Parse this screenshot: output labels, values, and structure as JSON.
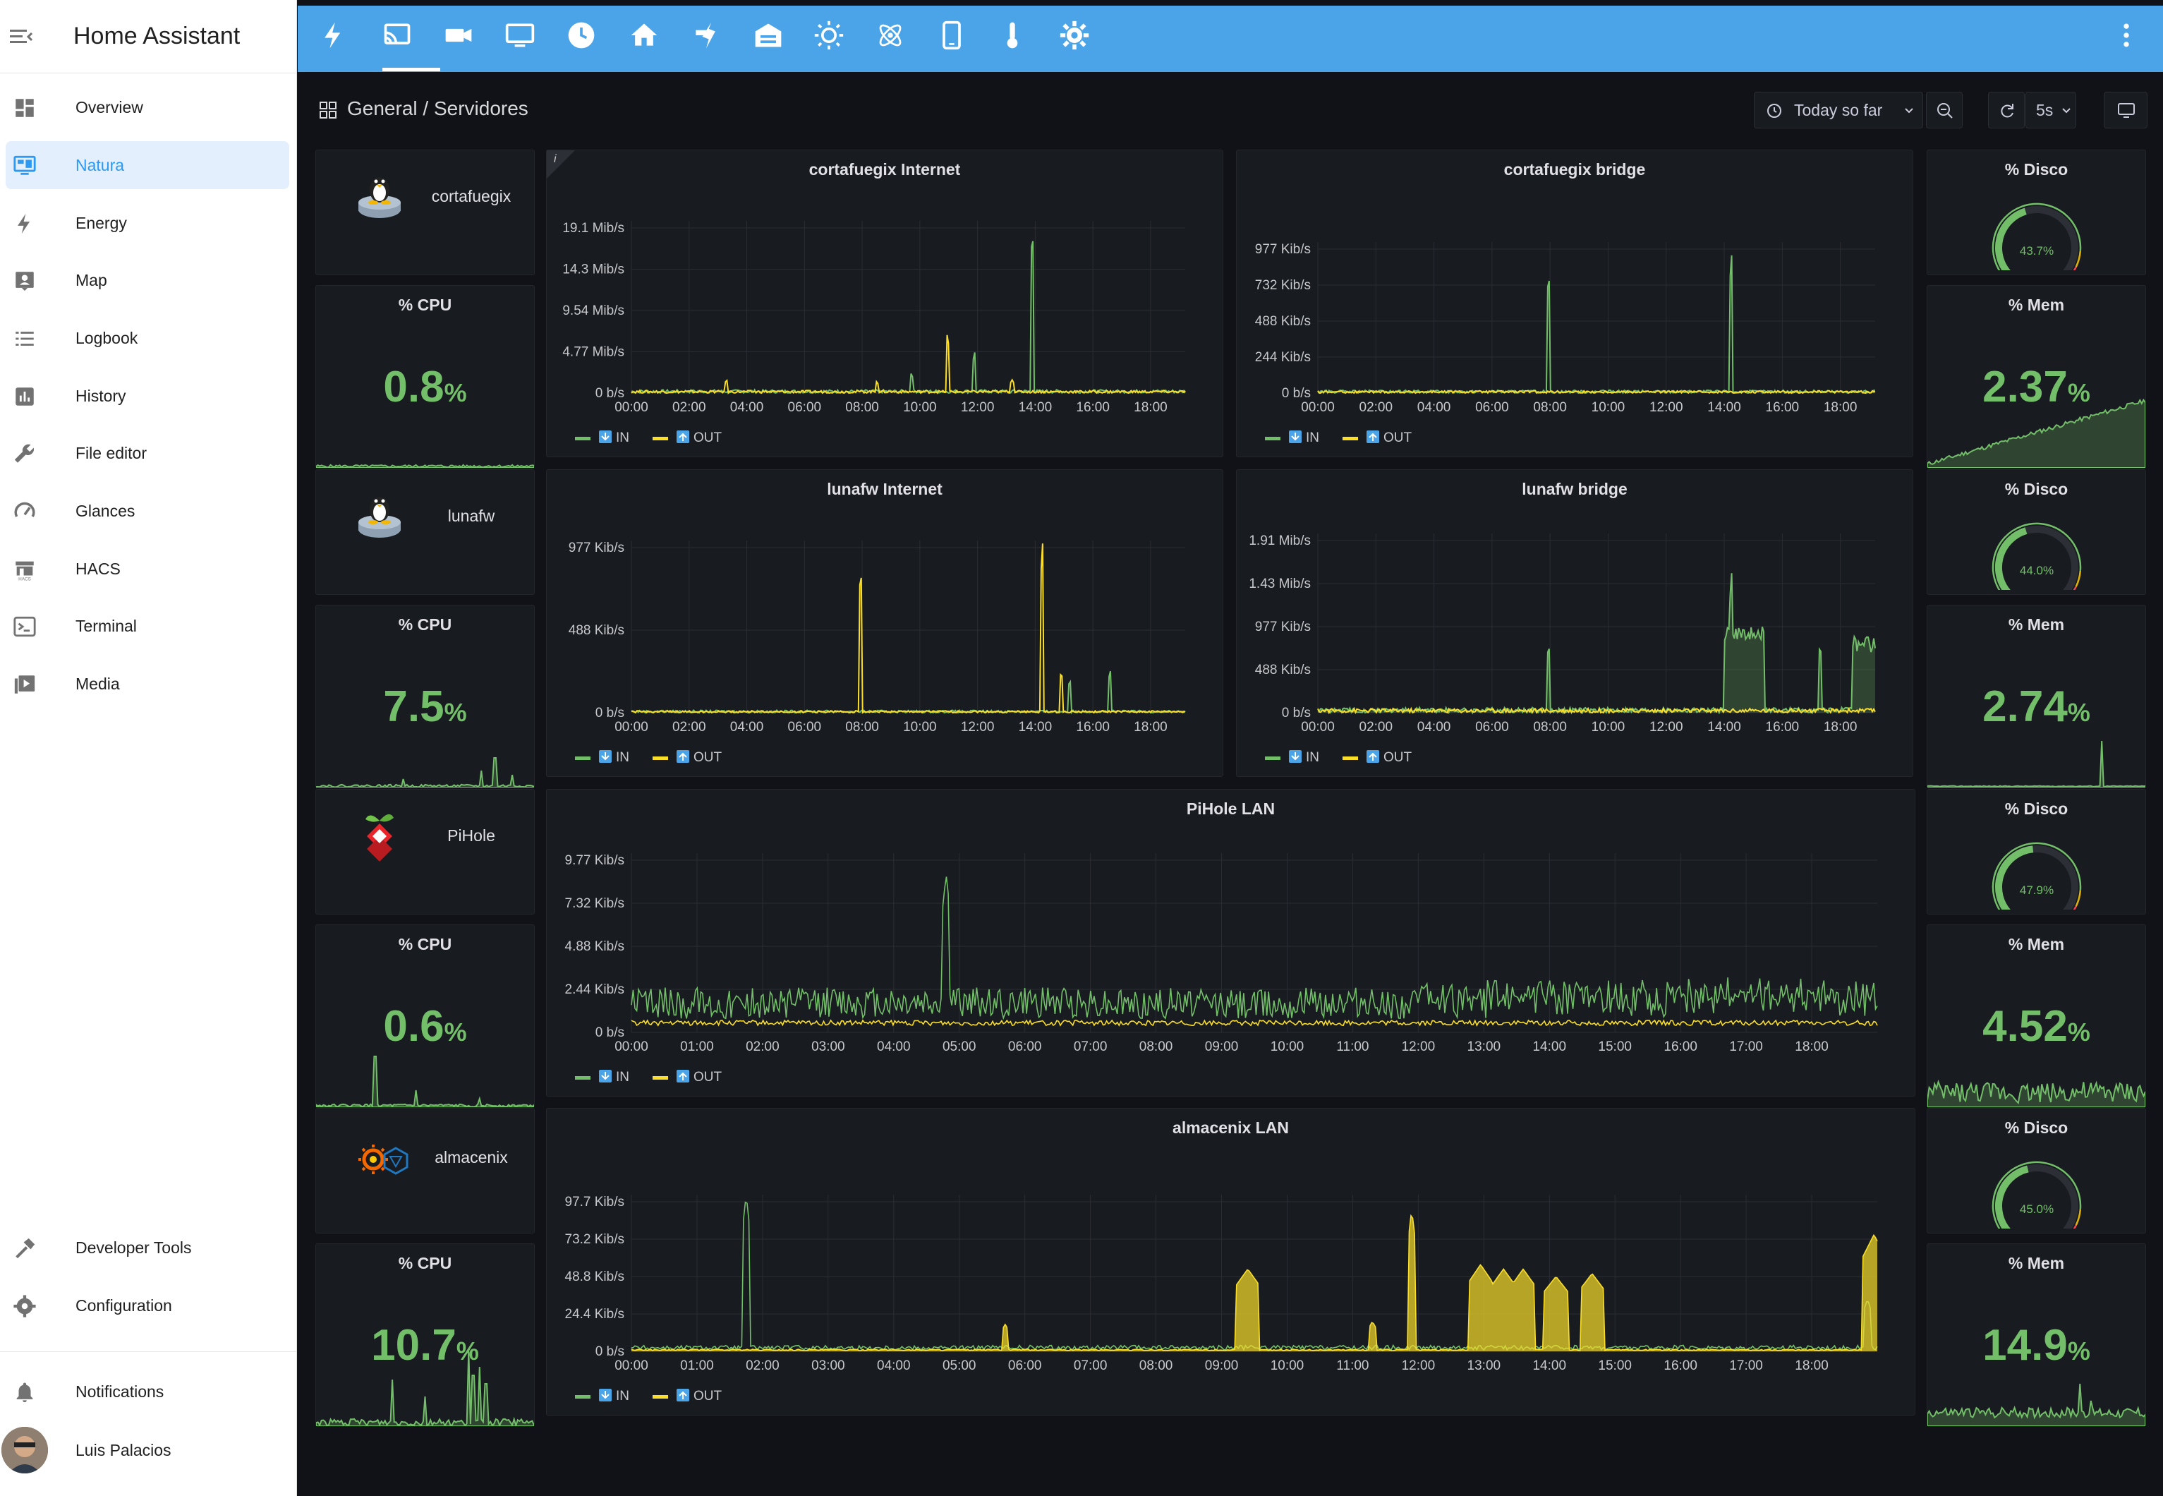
{
  "app": {
    "title": "Home Assistant"
  },
  "sidebar": {
    "items": [
      {
        "label": "Overview",
        "icon": "dashboard-icon"
      },
      {
        "label": "Natura",
        "icon": "monitor-dashboard-icon"
      },
      {
        "label": "Energy",
        "icon": "lightning-icon"
      },
      {
        "label": "Map",
        "icon": "map-account-icon"
      },
      {
        "label": "Logbook",
        "icon": "list-icon"
      },
      {
        "label": "History",
        "icon": "chart-box-icon"
      },
      {
        "label": "File editor",
        "icon": "wrench-icon"
      },
      {
        "label": "Glances",
        "icon": "speedometer-icon"
      },
      {
        "label": "HACS",
        "icon": "hacs-store-icon"
      },
      {
        "label": "Terminal",
        "icon": "console-icon"
      },
      {
        "label": "Media",
        "icon": "play-box-icon"
      }
    ],
    "bottom": [
      {
        "label": "Developer Tools",
        "icon": "hammer-icon"
      },
      {
        "label": "Configuration",
        "icon": "cog-icon"
      }
    ],
    "notifications": "Notifications",
    "user": "Luis Palacios"
  },
  "topbar": {
    "icons": [
      "lightning-icon",
      "cast-icon",
      "camera-icon",
      "monitor-icon",
      "clock-icon",
      "home-icon",
      "plug-icon",
      "garage-icon",
      "sun-icon",
      "atom-icon",
      "phone-icon",
      "thermometer-icon",
      "gear-sun-icon"
    ],
    "menu": "more-vertical-icon"
  },
  "breadcrumb": {
    "folder": "General",
    "separator": "/",
    "page": "Servidores"
  },
  "time": {
    "range": "Today so far",
    "refresh": "5s"
  },
  "colors": {
    "in": "#73bf69",
    "out": "#fade2a",
    "bg": "#181b1f",
    "accent": "#4ba3e8"
  },
  "legend": {
    "in": "IN",
    "out": "OUT"
  },
  "rows": [
    {
      "host": "cortafuegix",
      "logo": "tux-icon",
      "cpu_title": "% CPU",
      "cpu": "0.8",
      "cpu_unit": "%",
      "disco_title": "% Disco",
      "disco": "43.7%",
      "disco_pct": 43.7,
      "mem_title": "% Mem",
      "mem": "2.37",
      "mem_unit": "%"
    },
    {
      "host": "lunafw",
      "logo": "tux-icon",
      "cpu_title": "% CPU",
      "cpu": "7.5",
      "cpu_unit": "%",
      "disco_title": "% Disco",
      "disco": "44.0%",
      "disco_pct": 44.0,
      "mem_title": "% Mem",
      "mem": "2.74",
      "mem_unit": "%"
    },
    {
      "host": "PiHole",
      "logo": "pihole-icon",
      "cpu_title": "% CPU",
      "cpu": "0.6",
      "cpu_unit": "%",
      "disco_title": "% Disco",
      "disco": "47.9%",
      "disco_pct": 47.9,
      "mem_title": "% Mem",
      "mem": "4.52",
      "mem_unit": "%"
    },
    {
      "host": "almacenix",
      "logo": "grafana-icon",
      "cpu_title": "% CPU",
      "cpu": "10.7",
      "cpu_unit": "%",
      "disco_title": "% Disco",
      "disco": "45.0%",
      "disco_pct": 45.0,
      "mem_title": "% Mem",
      "mem": "14.9",
      "mem_unit": "%"
    }
  ],
  "chart_data": [
    {
      "type": "line",
      "title": "cortafuegix Internet",
      "y_ticks": [
        "0 b/s",
        "4.77 Mib/s",
        "9.54 Mib/s",
        "14.3 Mib/s",
        "19.1 Mib/s"
      ],
      "x_ticks": [
        "00:00",
        "02:00",
        "04:00",
        "06:00",
        "08:00",
        "10:00",
        "12:00",
        "14:00",
        "16:00",
        "18:00"
      ],
      "series": [
        {
          "name": "IN",
          "peaks": [
            [
              13.9,
              1.0
            ],
            [
              11.9,
              0.25
            ],
            [
              9.7,
              0.12
            ]
          ]
        },
        {
          "name": "OUT",
          "peaks": [
            [
              10.95,
              0.36
            ],
            [
              13.2,
              0.08
            ],
            [
              3.3,
              0.08
            ],
            [
              8.5,
              0.07
            ]
          ]
        }
      ]
    },
    {
      "type": "line",
      "title": "cortafuegix bridge",
      "y_ticks": [
        "0 b/s",
        "244 Kib/s",
        "488 Kib/s",
        "732 Kib/s",
        "977 Kib/s"
      ],
      "x_ticks": [
        "00:00",
        "02:00",
        "04:00",
        "06:00",
        "08:00",
        "10:00",
        "12:00",
        "14:00",
        "16:00",
        "18:00"
      ],
      "series": [
        {
          "name": "IN",
          "peaks": [
            [
              7.95,
              0.84
            ],
            [
              14.25,
              0.98
            ]
          ]
        },
        {
          "name": "OUT",
          "peaks": []
        }
      ]
    },
    {
      "type": "line",
      "title": "lunafw Internet",
      "y_ticks": [
        "0 b/s",
        "488 Kib/s",
        "977 Kib/s"
      ],
      "x_ticks": [
        "00:00",
        "02:00",
        "04:00",
        "06:00",
        "08:00",
        "10:00",
        "12:00",
        "14:00",
        "16:00",
        "18:00"
      ],
      "series": [
        {
          "name": "IN",
          "peaks": [
            [
              15.2,
              0.2
            ],
            [
              16.6,
              0.26
            ]
          ]
        },
        {
          "name": "OUT",
          "peaks": [
            [
              7.95,
              0.88
            ],
            [
              14.25,
              1.05
            ],
            [
              14.9,
              0.25
            ]
          ]
        }
      ]
    },
    {
      "type": "line",
      "title": "lunafw bridge",
      "y_ticks": [
        "0 b/s",
        "488 Kib/s",
        "977 Kib/s",
        "1.43 Mib/s",
        "1.91 Mib/s"
      ],
      "x_ticks": [
        "00:00",
        "02:00",
        "04:00",
        "06:00",
        "08:00",
        "10:00",
        "12:00",
        "14:00",
        "16:00",
        "18:00"
      ],
      "series": [
        {
          "name": "IN",
          "peaks": [
            [
              7.95,
              0.4
            ],
            [
              14.25,
              0.83
            ],
            [
              14.5,
              0.5
            ],
            [
              15.2,
              0.45
            ],
            [
              17.3,
              0.4
            ],
            [
              18.5,
              0.48
            ]
          ]
        },
        {
          "name": "OUT",
          "peaks": []
        }
      ]
    },
    {
      "type": "line",
      "title": "PiHole LAN",
      "y_ticks": [
        "0 b/s",
        "2.44 Kib/s",
        "4.88 Kib/s",
        "7.32 Kib/s",
        "9.77 Kib/s"
      ],
      "x_ticks": [
        "00:00",
        "01:00",
        "02:00",
        "03:00",
        "04:00",
        "05:00",
        "06:00",
        "07:00",
        "08:00",
        "09:00",
        "10:00",
        "11:00",
        "12:00",
        "13:00",
        "14:00",
        "15:00",
        "16:00",
        "17:00",
        "18:00"
      ],
      "series": [
        {
          "name": "IN",
          "peaks": [
            [
              4.8,
              0.92
            ]
          ]
        },
        {
          "name": "OUT",
          "peaks": []
        }
      ]
    },
    {
      "type": "line",
      "title": "almacenix LAN",
      "y_ticks": [
        "0 b/s",
        "24.4 Kib/s",
        "48.8 Kib/s",
        "73.2 Kib/s",
        "97.7 Kib/s"
      ],
      "x_ticks": [
        "00:00",
        "01:00",
        "02:00",
        "03:00",
        "04:00",
        "05:00",
        "06:00",
        "07:00",
        "08:00",
        "09:00",
        "10:00",
        "11:00",
        "12:00",
        "13:00",
        "14:00",
        "15:00",
        "16:00",
        "17:00",
        "18:00"
      ],
      "series": [
        {
          "name": "IN",
          "peaks": [
            [
              1.75,
              1.05
            ],
            [
              18.85,
              0.35
            ]
          ]
        },
        {
          "name": "OUT",
          "peaks": [
            [
              5.7,
              0.18
            ],
            [
              9.4,
              0.55
            ],
            [
              11.3,
              0.2
            ],
            [
              11.9,
              0.95
            ],
            [
              12.95,
              0.58
            ],
            [
              13.3,
              0.55
            ],
            [
              13.6,
              0.55
            ],
            [
              14.1,
              0.5
            ],
            [
              14.65,
              0.52
            ],
            [
              18.95,
              0.78
            ]
          ]
        }
      ]
    }
  ]
}
